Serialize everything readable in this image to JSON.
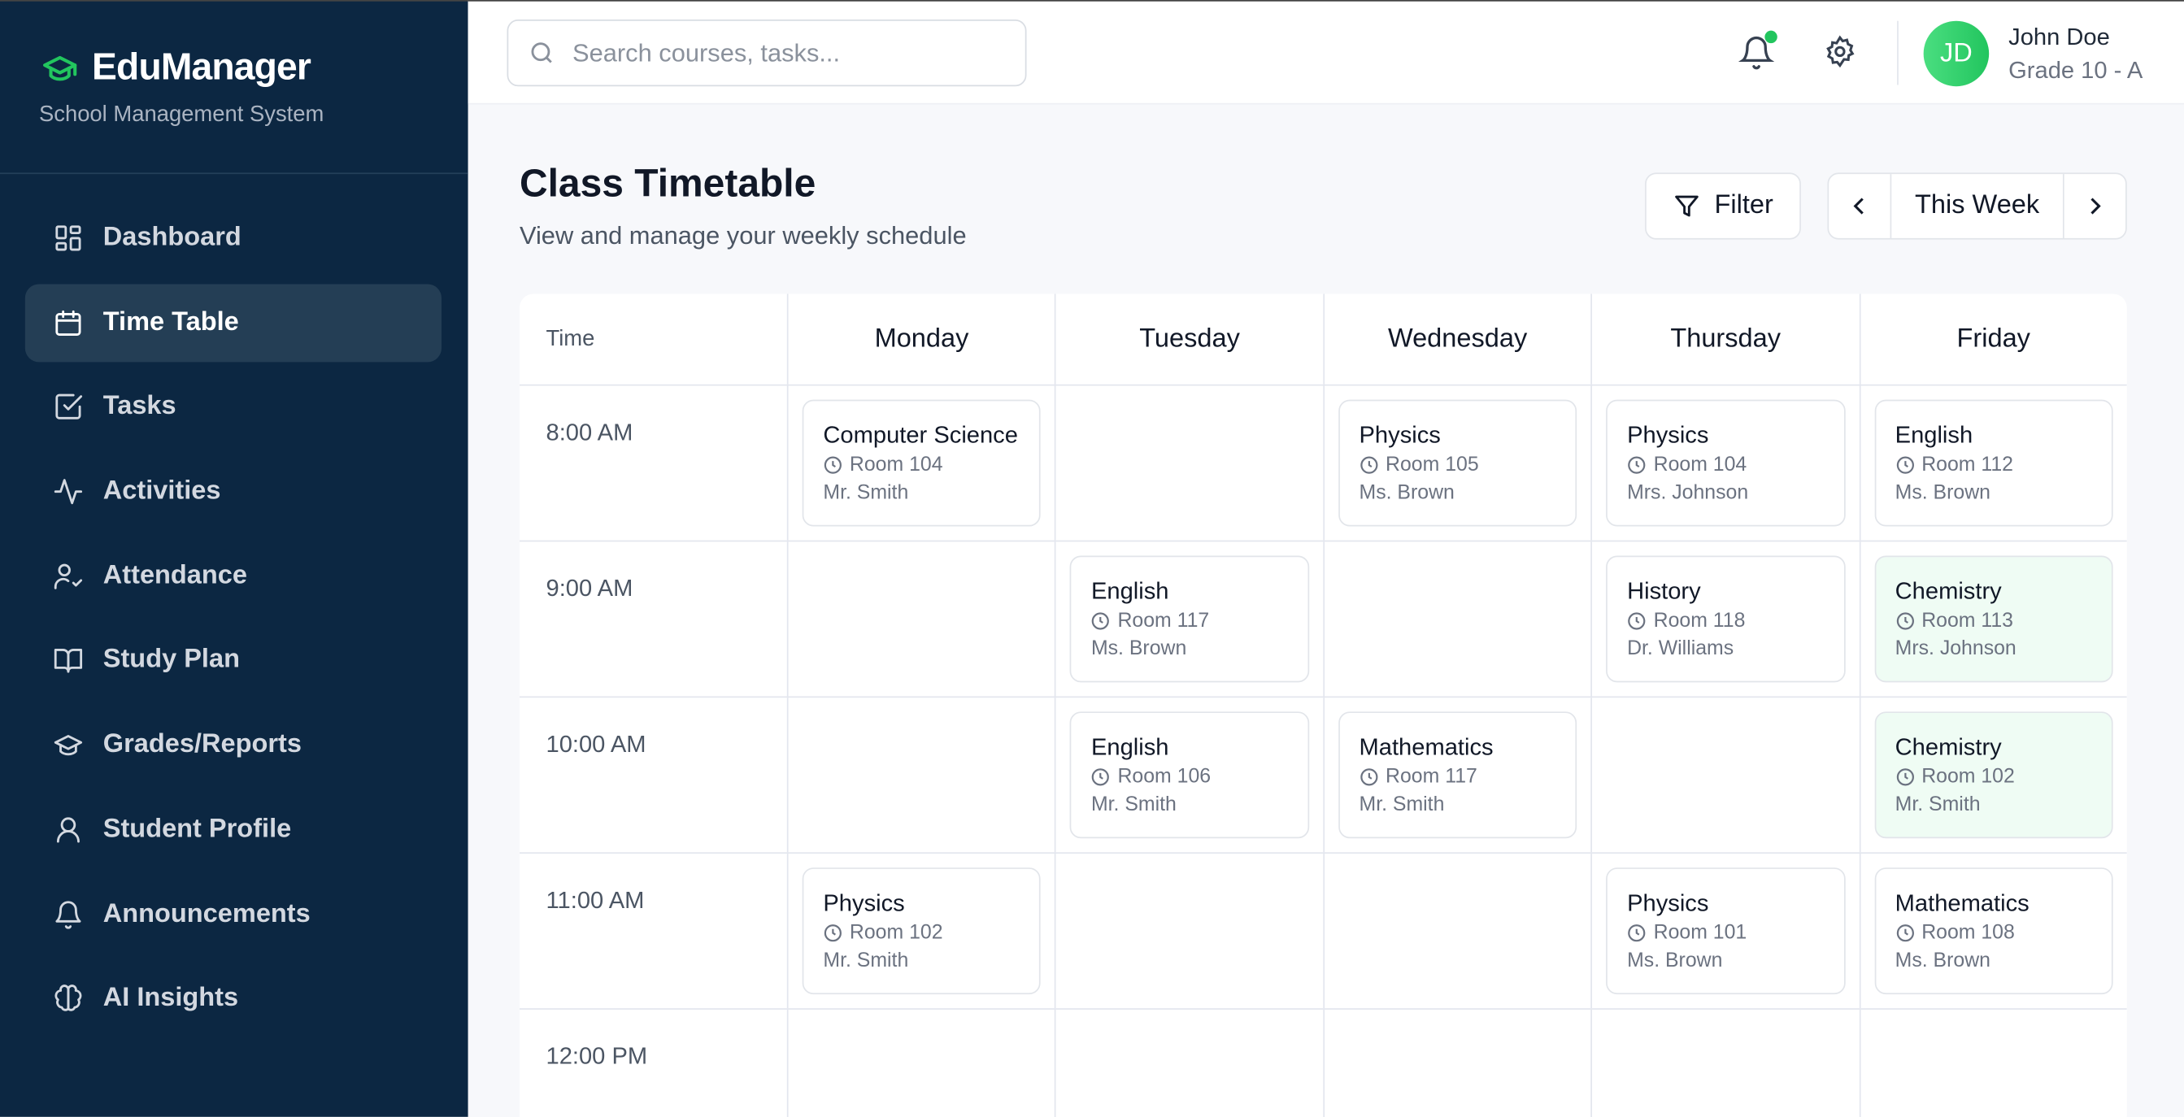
{
  "brand": {
    "name": "EduManager",
    "subtitle": "School Management System",
    "accent": "#22c55e"
  },
  "sidebar": {
    "items": [
      {
        "label": "Dashboard",
        "icon": "dashboard-icon"
      },
      {
        "label": "Time Table",
        "icon": "calendar-icon",
        "active": true
      },
      {
        "label": "Tasks",
        "icon": "checkbox-icon"
      },
      {
        "label": "Activities",
        "icon": "activity-icon"
      },
      {
        "label": "Attendance",
        "icon": "user-check-icon"
      },
      {
        "label": "Study Plan",
        "icon": "book-icon"
      },
      {
        "label": "Grades/Reports",
        "icon": "graduation-cap-icon"
      },
      {
        "label": "Student Profile",
        "icon": "user-icon"
      },
      {
        "label": "Announcements",
        "icon": "bell-icon"
      },
      {
        "label": "AI Insights",
        "icon": "brain-icon"
      }
    ]
  },
  "header": {
    "search_placeholder": "Search courses, tasks...",
    "user": {
      "initials": "JD",
      "name": "John Doe",
      "grade": "Grade 10 - A"
    }
  },
  "page": {
    "title": "Class Timetable",
    "subtitle": "View and manage your weekly schedule",
    "filter_label": "Filter",
    "week_label": "This Week"
  },
  "timetable": {
    "time_header": "Time",
    "days": [
      "Monday",
      "Tuesday",
      "Wednesday",
      "Thursday",
      "Friday"
    ],
    "rows": [
      {
        "time": "8:00 AM",
        "slots": [
          {
            "subject": "Computer Science",
            "room": "Room 104",
            "teacher": "Mr. Smith"
          },
          null,
          {
            "subject": "Physics",
            "room": "Room 105",
            "teacher": "Ms. Brown"
          },
          {
            "subject": "Physics",
            "room": "Room 104",
            "teacher": "Mrs. Johnson"
          },
          {
            "subject": "English",
            "room": "Room 112",
            "teacher": "Ms. Brown"
          }
        ]
      },
      {
        "time": "9:00 AM",
        "slots": [
          null,
          {
            "subject": "English",
            "room": "Room 117",
            "teacher": "Ms. Brown"
          },
          null,
          {
            "subject": "History",
            "room": "Room 118",
            "teacher": "Dr. Williams"
          },
          {
            "subject": "Chemistry",
            "room": "Room 113",
            "teacher": "Mrs. Johnson",
            "highlight": true
          }
        ]
      },
      {
        "time": "10:00 AM",
        "slots": [
          null,
          {
            "subject": "English",
            "room": "Room 106",
            "teacher": "Mr. Smith"
          },
          {
            "subject": "Mathematics",
            "room": "Room 117",
            "teacher": "Mr. Smith"
          },
          null,
          {
            "subject": "Chemistry",
            "room": "Room 102",
            "teacher": "Mr. Smith",
            "highlight": true
          }
        ]
      },
      {
        "time": "11:00 AM",
        "slots": [
          {
            "subject": "Physics",
            "room": "Room 102",
            "teacher": "Mr. Smith"
          },
          null,
          null,
          {
            "subject": "Physics",
            "room": "Room 101",
            "teacher": "Ms. Brown"
          },
          {
            "subject": "Mathematics",
            "room": "Room 108",
            "teacher": "Ms. Brown"
          }
        ]
      },
      {
        "time": "12:00 PM",
        "slots": [
          null,
          null,
          null,
          null,
          null
        ]
      }
    ]
  }
}
